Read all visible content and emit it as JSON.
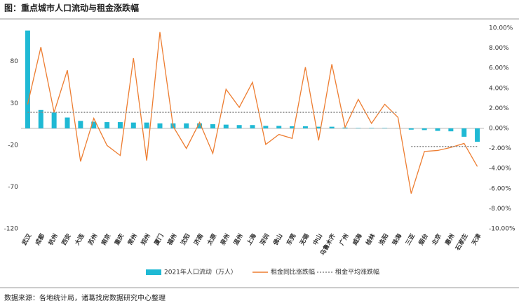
{
  "chart_data": {
    "type": "bar-line",
    "title": "图：重点城市人口流动与租金涨跌幅",
    "source": "数据来源：各地统计局，诸葛找房数据研究中心整理",
    "categories": [
      "武汉",
      "成都",
      "杭州",
      "西安",
      "大连",
      "苏州",
      "南京",
      "重庆",
      "常州",
      "郑州",
      "厦门",
      "福州",
      "沈阳",
      "济南",
      "太原",
      "泉州",
      "温州",
      "上海",
      "深圳",
      "佛山",
      "东莞",
      "无锡",
      "中山",
      "乌鲁木齐",
      "广州",
      "威海",
      "桂林",
      "洛阳",
      "珠海",
      "三亚",
      "烟台",
      "北京",
      "惠州",
      "石家庄",
      "天津"
    ],
    "series": [
      {
        "name": "2021年人口流动（万人）",
        "type": "bar",
        "color": "#1fb9d4",
        "values": [
          117,
          22,
          19,
          13,
          9,
          8,
          7.5,
          7.5,
          7,
          7,
          6,
          6,
          6,
          6,
          5,
          4.5,
          4,
          4,
          3,
          3,
          2.5,
          2.5,
          2,
          2,
          1,
          0.5,
          0.5,
          0.5,
          0.2,
          -1.5,
          -2,
          -3,
          -3.5,
          -10,
          -16
        ]
      },
      {
        "name": "租金同比涨跌幅",
        "type": "line",
        "axis": "y2",
        "color": "#ed7d31",
        "values": [
          2.4,
          8.1,
          1.6,
          5.8,
          -3.3,
          1.0,
          -1.7,
          -2.7,
          7.0,
          -3.2,
          9.6,
          0.2,
          -2.0,
          0.6,
          -2.5,
          3.9,
          2.1,
          4.6,
          -1.6,
          -0.6,
          -1.0,
          6.1,
          -1.2,
          6.4,
          0.1,
          2.9,
          0.5,
          2.4,
          1.1,
          -6.5,
          -2.3,
          -2.2,
          -1.9,
          -1.5,
          -3.8
        ]
      },
      {
        "name": "租金平均涨跌幅",
        "type": "dotted",
        "axis": "y2",
        "color": "#888888",
        "values": [
          1.6,
          1.6,
          1.6,
          1.6,
          1.6,
          1.6,
          1.6,
          1.6,
          1.6,
          1.6,
          1.6,
          1.6,
          1.6,
          1.6,
          1.6,
          1.6,
          1.6,
          1.6,
          1.6,
          1.6,
          1.6,
          1.6,
          1.6,
          1.6,
          1.6,
          1.6,
          1.6,
          1.6,
          1.6,
          -1.8,
          -1.8,
          -1.8,
          -1.8,
          -1.8,
          -1.8
        ]
      }
    ],
    "ylim": [
      -120,
      120
    ],
    "yticks": [
      80,
      30,
      -20,
      -70,
      -120
    ],
    "y2lim": [
      -10,
      10
    ],
    "y2ticks": [
      {
        "value": 10,
        "label": "10.00%"
      },
      {
        "value": 8,
        "label": "8.00%"
      },
      {
        "value": 6,
        "label": "6.00%"
      },
      {
        "value": 4,
        "label": "4.00%"
      },
      {
        "value": 2,
        "label": "2.00%"
      },
      {
        "value": 0,
        "label": "0.00%"
      },
      {
        "value": -2,
        "label": "-2.00%"
      },
      {
        "value": -4,
        "label": "-4.00%"
      },
      {
        "value": -6,
        "label": "-6.00%"
      },
      {
        "value": -8,
        "label": "-8.00%"
      },
      {
        "value": -10,
        "label": "-10.00%"
      }
    ]
  }
}
